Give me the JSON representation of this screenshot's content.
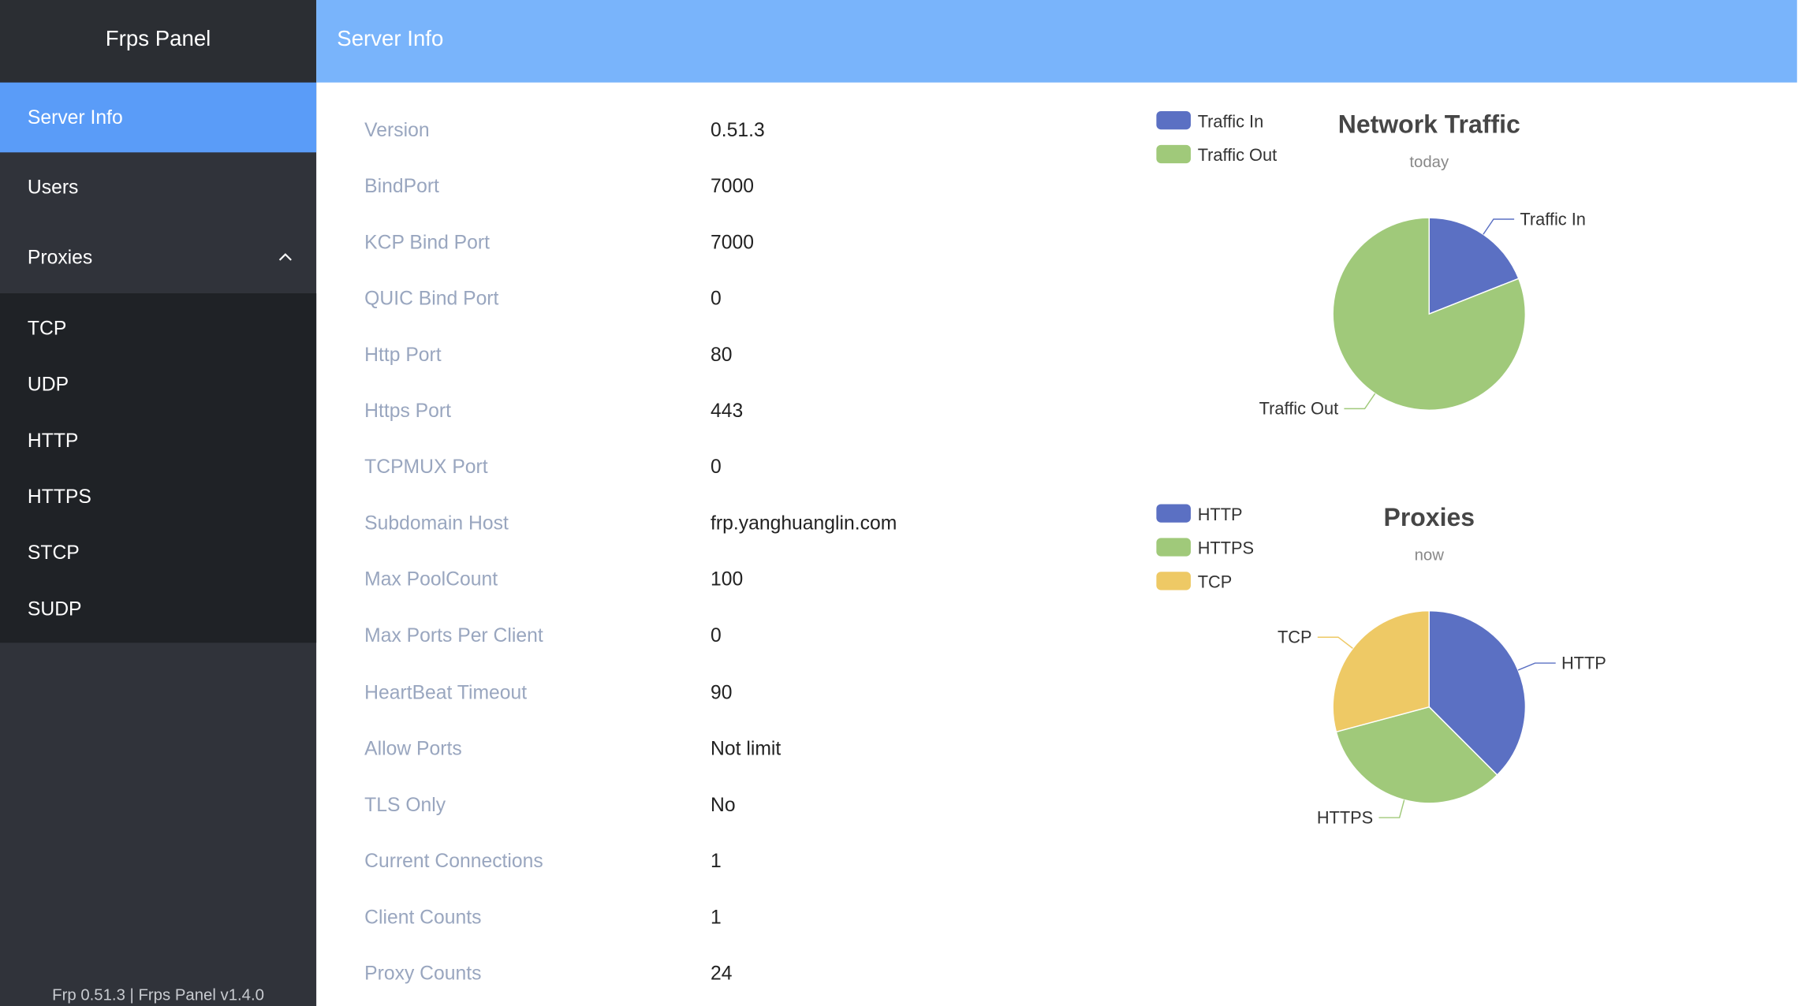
{
  "sidebar": {
    "title": "Frps Panel",
    "menu": [
      "Server Info",
      "Users",
      "Proxies"
    ],
    "submenu": [
      "TCP",
      "UDP",
      "HTTP",
      "HTTPS",
      "STCP",
      "SUDP"
    ],
    "footer": "Frp 0.51.3 | Frps Panel v1.4.0"
  },
  "header": {
    "title": "Server Info"
  },
  "info": [
    [
      "Version",
      "0.51.3"
    ],
    [
      "BindPort",
      "7000"
    ],
    [
      "KCP Bind Port",
      "7000"
    ],
    [
      "QUIC Bind Port",
      "0"
    ],
    [
      "Http Port",
      "80"
    ],
    [
      "Https Port",
      "443"
    ],
    [
      "TCPMUX Port",
      "0"
    ],
    [
      "Subdomain Host",
      "frp.yanghuanglin.com"
    ],
    [
      "Max PoolCount",
      "100"
    ],
    [
      "Max Ports Per Client",
      "0"
    ],
    [
      "HeartBeat Timeout",
      "90"
    ],
    [
      "Allow Ports",
      "Not limit"
    ],
    [
      "TLS Only",
      "No"
    ],
    [
      "Current Connections",
      "1"
    ],
    [
      "Client Counts",
      "1"
    ],
    [
      "Proxy Counts",
      "24"
    ]
  ],
  "chart_data": [
    {
      "type": "pie",
      "title": "Network Traffic",
      "subtitle": "today",
      "categories": [
        "Traffic In",
        "Traffic Out"
      ],
      "values": [
        19,
        81
      ],
      "colors": [
        "#5b70c3",
        "#a0c97a"
      ]
    },
    {
      "type": "pie",
      "title": "Proxies",
      "subtitle": "now",
      "categories": [
        "HTTP",
        "HTTPS",
        "TCP"
      ],
      "values": [
        9,
        8,
        7
      ],
      "colors": [
        "#5b70c3",
        "#a0c97a",
        "#eec965"
      ]
    }
  ]
}
